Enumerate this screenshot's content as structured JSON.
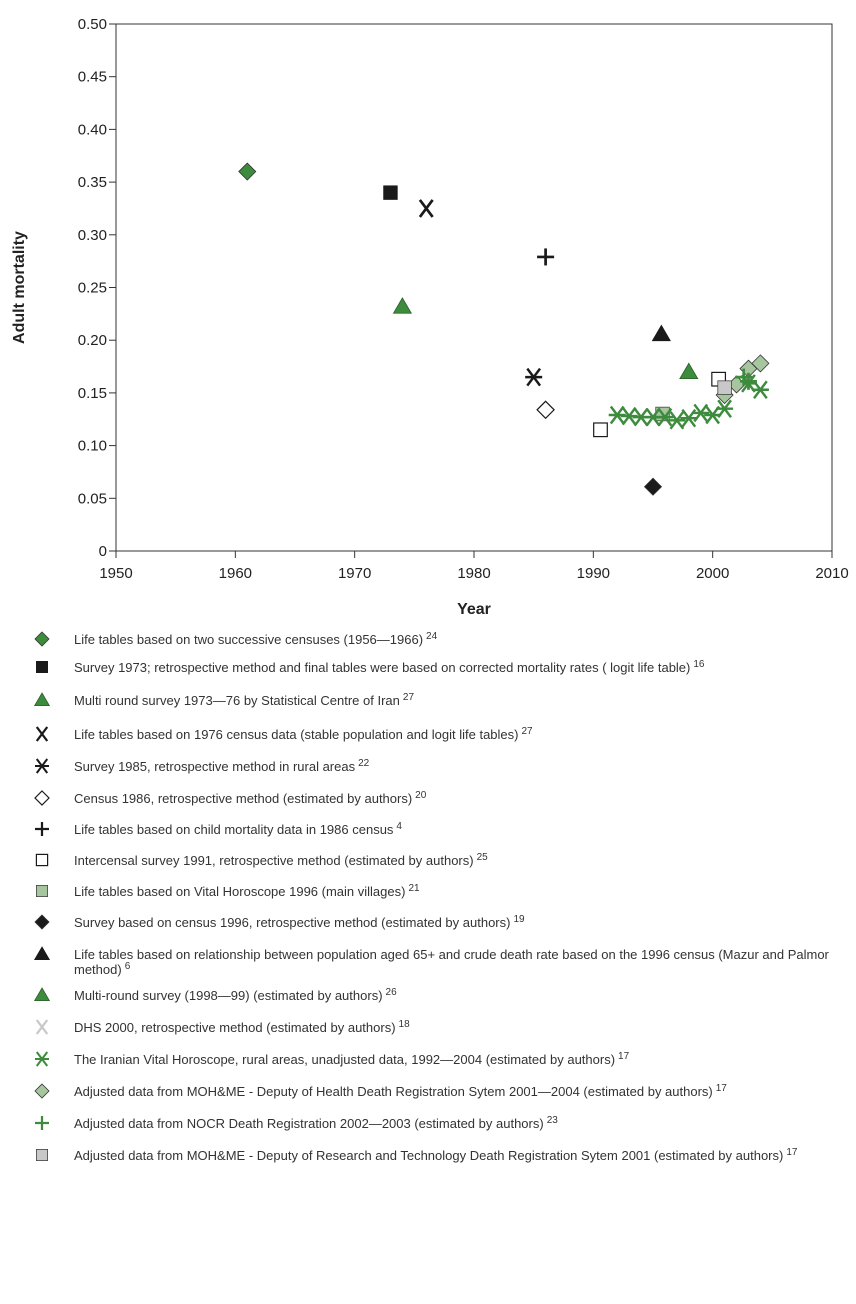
{
  "chart_data": {
    "type": "scatter",
    "xlabel": "Year",
    "ylabel": "Adult mortality",
    "xlim": [
      1950,
      2010
    ],
    "ylim": [
      0,
      0.5
    ],
    "x_ticks": [
      "1950",
      "1960",
      "1970",
      "1980",
      "1990",
      "2000",
      "2010"
    ],
    "y_ticks": [
      "0",
      "0.05",
      "0.10",
      "0.15",
      "0.20",
      "0.25",
      "0.30",
      "0.35",
      "0.40",
      "0.45",
      "0.50"
    ],
    "grid": false,
    "series": [
      {
        "name": "Life tables based on two successive censuses (1956—1966)",
        "ref": "24",
        "marker": "diamond",
        "color": "#3d8b3d",
        "points": [
          [
            1961,
            0.36
          ]
        ]
      },
      {
        "name": "Survey 1973; retrospective method and final tables were based on corrected mortality rates ( logit life table)",
        "ref": "16",
        "marker": "square",
        "color": "#1a1a1a",
        "points": [
          [
            1973,
            0.34
          ]
        ]
      },
      {
        "name": "Multi round survey 1973—76 by Statistical Centre of Iran",
        "ref": "27",
        "marker": "triangle",
        "color": "#3d8b3d",
        "points": [
          [
            1974,
            0.232
          ]
        ]
      },
      {
        "name": "Life tables based on 1976 census data (stable population and logit life tables)",
        "ref": "27",
        "marker": "x",
        "color": "#1a1a1a",
        "points": [
          [
            1976,
            0.325
          ]
        ]
      },
      {
        "name": "Survey 1985, retrospective method in rural areas",
        "ref": "22",
        "marker": "asterisk",
        "color": "#1a1a1a",
        "points": [
          [
            1985,
            0.165
          ]
        ]
      },
      {
        "name": "Census 1986, retrospective method (estimated by authors)",
        "ref": "20",
        "marker": "diamond-open",
        "color": "#1a1a1a",
        "points": [
          [
            1986,
            0.134
          ]
        ]
      },
      {
        "name": "Life tables based on child mortality data in 1986 census",
        "ref": "4",
        "marker": "plus",
        "color": "#1a1a1a",
        "points": [
          [
            1986,
            0.279
          ]
        ]
      },
      {
        "name": "Intercensal survey 1991, retrospective method (estimated by authors)",
        "ref": "25",
        "marker": "square-open",
        "color": "#1a1a1a",
        "points": [
          [
            1990.6,
            0.115
          ],
          [
            2000.5,
            0.163
          ]
        ]
      },
      {
        "name": "Life tables based on Vital Horoscope 1996 (main villages)",
        "ref": "21",
        "marker": "square",
        "color": "#a7c6a0",
        "points": [
          [
            1995.8,
            0.13
          ]
        ]
      },
      {
        "name": "Survey based on census 1996, retrospective method (estimated by authors)",
        "ref": "19",
        "marker": "diamond",
        "color": "#1a1a1a",
        "points": [
          [
            1995,
            0.061
          ]
        ]
      },
      {
        "name": "Life tables based on relationship between population aged 65+ and crude death rate based on the 1996 census (Mazur and Palmor method)",
        "ref": "6",
        "marker": "triangle",
        "color": "#1a1a1a",
        "points": [
          [
            1995.7,
            0.206
          ]
        ]
      },
      {
        "name": "Multi-round survey (1998—99) (estimated by authors)",
        "ref": "26",
        "marker": "triangle",
        "color": "#3d8b3d",
        "points": [
          [
            1998,
            0.17
          ]
        ]
      },
      {
        "name": "DHS 2000, retrospective method (estimated by authors)",
        "ref": "18",
        "marker": "x",
        "color": "#c8c8c8",
        "points": []
      },
      {
        "name": "The Iranian Vital Horoscope, rural areas, unadjusted data, 1992—2004 (estimated by authors)",
        "ref": "17",
        "marker": "asterisk",
        "color": "#3d8b3d",
        "points": [
          [
            1992,
            0.129
          ],
          [
            1993,
            0.128
          ],
          [
            1994,
            0.127
          ],
          [
            1995,
            0.127
          ],
          [
            1996,
            0.127
          ],
          [
            1997,
            0.124
          ],
          [
            1998,
            0.126
          ],
          [
            1999,
            0.131
          ],
          [
            2000,
            0.129
          ],
          [
            2001,
            0.135
          ],
          [
            2003,
            0.159
          ],
          [
            2004,
            0.153
          ]
        ]
      },
      {
        "name": "Adjusted data from MOH&ME - Deputy of Health Death Registration Sytem 2001—2004 (estimated by authors)",
        "ref": "17",
        "marker": "diamond",
        "color": "#a7c6a0",
        "points": [
          [
            2001,
            0.148
          ],
          [
            2002,
            0.158
          ],
          [
            2003,
            0.173
          ],
          [
            2004,
            0.178
          ]
        ]
      },
      {
        "name": "Adjusted data from NOCR Death Registration 2002—2003 (estimated by authors)",
        "ref": "23",
        "marker": "plus",
        "color": "#3d8b3d",
        "points": [
          [
            2002.6,
            0.165
          ],
          [
            2003,
            0.161
          ]
        ]
      },
      {
        "name": "Adjusted data from MOH&ME - Deputy of Research and Technology Death Registration Sytem 2001 (estimated by authors)",
        "ref": "17",
        "marker": "square",
        "color": "#c8c8c8",
        "points": [
          [
            2001,
            0.155
          ]
        ]
      }
    ]
  }
}
